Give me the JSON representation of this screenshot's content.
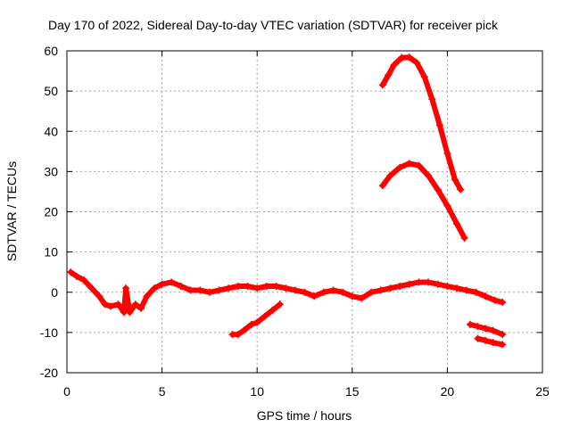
{
  "chart_data": {
    "type": "scatter",
    "title": "Day 170 of 2022, Sidereal Day-to-day VTEC variation (SDTVAR) for receiver pick",
    "xlabel": "GPS time / hours",
    "ylabel": "SDTVAR / TECUs",
    "xlim": [
      0,
      25
    ],
    "ylim": [
      -20,
      60
    ],
    "x_ticks": [
      0,
      5,
      10,
      15,
      20,
      25
    ],
    "y_ticks": [
      -20,
      -10,
      0,
      10,
      20,
      30,
      40,
      50,
      60
    ],
    "grid": true,
    "marker": "plus",
    "series_color": "#ff0000",
    "series": [
      {
        "name": "near-zero band",
        "points": [
          [
            0.2,
            5
          ],
          [
            0.5,
            4
          ],
          [
            0.9,
            3
          ],
          [
            1.3,
            1
          ],
          [
            1.7,
            -1
          ],
          [
            2.0,
            -3
          ],
          [
            2.3,
            -3.5
          ],
          [
            2.7,
            -3
          ],
          [
            3.0,
            -5
          ],
          [
            3.1,
            1
          ],
          [
            3.3,
            -5
          ],
          [
            3.6,
            -3
          ],
          [
            3.9,
            -4
          ],
          [
            4.2,
            -1
          ],
          [
            4.6,
            1
          ],
          [
            5.0,
            2
          ],
          [
            5.5,
            2.5
          ],
          [
            6.0,
            1.5
          ],
          [
            6.5,
            0.5
          ],
          [
            7.0,
            0.5
          ],
          [
            7.5,
            0
          ],
          [
            8.0,
            0.5
          ],
          [
            8.5,
            1
          ],
          [
            9.0,
            1.5
          ],
          [
            9.5,
            1.5
          ],
          [
            10.0,
            1
          ],
          [
            10.5,
            1.5
          ],
          [
            11.0,
            1.5
          ],
          [
            11.5,
            1
          ],
          [
            12.0,
            0.5
          ],
          [
            12.5,
            0
          ],
          [
            13.0,
            -1
          ],
          [
            13.5,
            0
          ],
          [
            14.0,
            0.5
          ],
          [
            14.5,
            0
          ],
          [
            15.0,
            -1
          ],
          [
            15.5,
            -1.5
          ],
          [
            16.0,
            0
          ],
          [
            16.5,
            0.5
          ],
          [
            17.0,
            1
          ],
          [
            17.5,
            1.5
          ],
          [
            18.0,
            2
          ],
          [
            18.5,
            2.5
          ],
          [
            19.0,
            2.5
          ],
          [
            19.5,
            2
          ],
          [
            20.0,
            1.5
          ],
          [
            20.5,
            1
          ],
          [
            21.0,
            0.5
          ],
          [
            21.5,
            0
          ],
          [
            22.0,
            -1
          ],
          [
            22.5,
            -2
          ],
          [
            22.9,
            -2.5
          ]
        ]
      },
      {
        "name": "arc 1",
        "points": [
          [
            16.6,
            51.5
          ],
          [
            16.9,
            54
          ],
          [
            17.2,
            56.5
          ],
          [
            17.6,
            58.3
          ],
          [
            18.0,
            58.4
          ],
          [
            18.4,
            57
          ],
          [
            18.8,
            53.5
          ],
          [
            19.2,
            48
          ],
          [
            19.6,
            41.5
          ],
          [
            20.0,
            34.5
          ],
          [
            20.4,
            28
          ],
          [
            20.7,
            25.5
          ]
        ]
      },
      {
        "name": "arc 2",
        "points": [
          [
            16.6,
            26.5
          ],
          [
            17.0,
            29
          ],
          [
            17.5,
            31
          ],
          [
            18.0,
            32
          ],
          [
            18.5,
            31.5
          ],
          [
            19.0,
            29
          ],
          [
            19.5,
            25.5
          ],
          [
            20.0,
            21.5
          ],
          [
            20.5,
            17
          ],
          [
            20.9,
            13.5
          ]
        ]
      },
      {
        "name": "low segment 1",
        "points": [
          [
            8.7,
            -10.5
          ],
          [
            9.0,
            -10.5
          ],
          [
            9.3,
            -9.5
          ],
          [
            9.7,
            -8
          ],
          [
            10.0,
            -7.5
          ],
          [
            10.4,
            -6
          ],
          [
            10.8,
            -4.5
          ],
          [
            11.2,
            -3
          ]
        ]
      },
      {
        "name": "low segment 2",
        "points": [
          [
            21.2,
            -8
          ],
          [
            21.6,
            -8.5
          ],
          [
            22.0,
            -9
          ],
          [
            22.4,
            -9.5
          ],
          [
            22.9,
            -10.5
          ]
        ]
      },
      {
        "name": "low segment 3",
        "points": [
          [
            21.6,
            -11.5
          ],
          [
            22.0,
            -12
          ],
          [
            22.4,
            -12.5
          ],
          [
            22.9,
            -13
          ]
        ]
      }
    ]
  }
}
